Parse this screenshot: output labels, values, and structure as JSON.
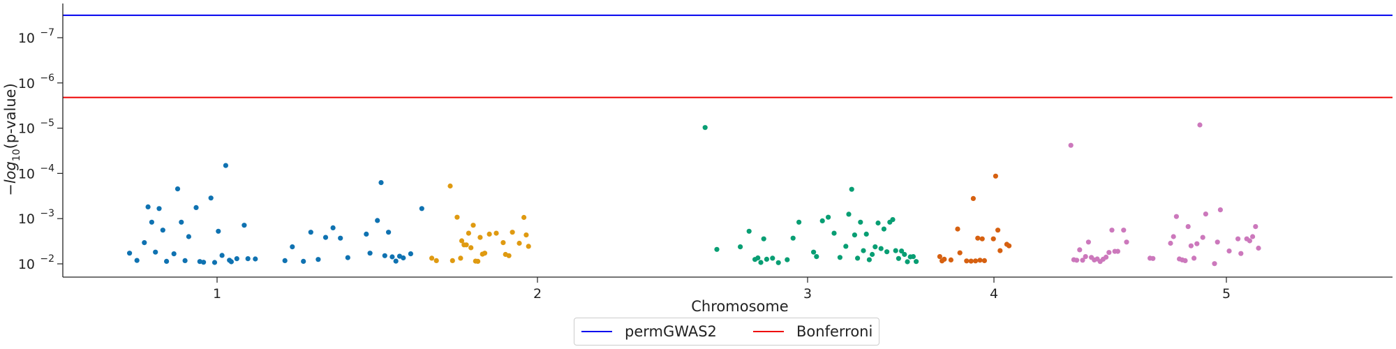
{
  "chart_data": {
    "type": "scatter",
    "title": "",
    "xlabel": "Chromosome",
    "ylabel": "−log10(p-value)",
    "y_scale": "log-reversed",
    "ylim": [
      0.02,
      3e-08
    ],
    "chromosome_ticks": [
      "1",
      "2",
      "3",
      "4",
      "5"
    ],
    "y_ticks": [
      {
        "value": 1e-07,
        "label": "10",
        "exp": "−7"
      },
      {
        "value": 1e-06,
        "label": "10",
        "exp": "−6"
      },
      {
        "value": 1e-05,
        "label": "10",
        "exp": "−5"
      },
      {
        "value": 0.0001,
        "label": "10",
        "exp": "−4"
      },
      {
        "value": 0.001,
        "label": "10",
        "exp": "−3"
      },
      {
        "value": 0.01,
        "label": "10",
        "exp": "−2"
      }
    ],
    "thresholds": [
      {
        "name": "permGWAS2",
        "value": 3.2e-08,
        "color": "#0000ee"
      },
      {
        "name": "Bonferroni",
        "value": 2.1e-06,
        "color": "#ee0000"
      }
    ],
    "legend_position": "below",
    "chromosome_colors": [
      "#0f72b1",
      "#df9a11",
      "#089e73",
      "#d66010",
      "#cc78bc"
    ],
    "series": [
      {
        "chromosome": 1,
        "color": "#0f72b1",
        "points": [
          [
            0.02,
            0.0058
          ],
          [
            0.04,
            0.0084
          ],
          [
            0.06,
            0.0034
          ],
          [
            0.07,
            0.00055
          ],
          [
            0.08,
            0.0012
          ],
          [
            0.09,
            0.0055
          ],
          [
            0.1,
            0.0006
          ],
          [
            0.11,
            0.0018
          ],
          [
            0.12,
            0.0088
          ],
          [
            0.14,
            0.006
          ],
          [
            0.15,
            0.00022
          ],
          [
            0.16,
            0.0012
          ],
          [
            0.17,
            0.0085
          ],
          [
            0.18,
            0.0025
          ],
          [
            0.2,
            0.00057
          ],
          [
            0.21,
            0.0089
          ],
          [
            0.22,
            0.0092
          ],
          [
            0.24,
            0.00035
          ],
          [
            0.25,
            0.0093
          ],
          [
            0.26,
            0.0019
          ],
          [
            0.27,
            0.0065
          ],
          [
            0.28,
            6.7e-05
          ],
          [
            0.29,
            0.0083
          ],
          [
            0.295,
            0.009
          ],
          [
            0.31,
            0.0077
          ],
          [
            0.33,
            0.0014
          ],
          [
            0.34,
            0.0077
          ],
          [
            0.36,
            0.0078
          ],
          [
            0.44,
            0.0085
          ],
          [
            0.46,
            0.0042
          ],
          [
            0.49,
            0.0088
          ],
          [
            0.51,
            0.002
          ],
          [
            0.53,
            0.008
          ],
          [
            0.55,
            0.0026
          ],
          [
            0.57,
            0.0016
          ],
          [
            0.59,
            0.0027
          ],
          [
            0.61,
            0.0073
          ],
          [
            0.66,
            0.0022
          ],
          [
            0.67,
            0.0058
          ],
          [
            0.69,
            0.0011
          ],
          [
            0.7,
            0.00016
          ],
          [
            0.71,
            0.0066
          ],
          [
            0.72,
            0.002
          ],
          [
            0.73,
            0.007
          ],
          [
            0.74,
            0.0087
          ],
          [
            0.75,
            0.0068
          ],
          [
            0.76,
            0.0074
          ],
          [
            0.78,
            0.006
          ],
          [
            0.81,
            0.0006
          ]
        ]
      },
      {
        "chromosome": 2,
        "color": "#df9a11",
        "points": [
          [
            0.02,
            0.0075
          ],
          [
            0.04,
            0.0085
          ],
          [
            0.1,
            0.00019
          ],
          [
            0.11,
            0.0085
          ],
          [
            0.13,
            0.00093
          ],
          [
            0.145,
            0.0075
          ],
          [
            0.15,
            0.0031
          ],
          [
            0.16,
            0.0038
          ],
          [
            0.17,
            0.0038
          ],
          [
            0.18,
            0.0021
          ],
          [
            0.19,
            0.0044
          ],
          [
            0.2,
            0.0014
          ],
          [
            0.21,
            0.0087
          ],
          [
            0.22,
            0.0088
          ],
          [
            0.23,
            0.0026
          ],
          [
            0.24,
            0.0061
          ],
          [
            0.25,
            0.0058
          ],
          [
            0.27,
            0.0022
          ],
          [
            0.3,
            0.0021
          ],
          [
            0.33,
            0.0034
          ],
          [
            0.34,
            0.0062
          ],
          [
            0.355,
            0.0066
          ],
          [
            0.37,
            0.002
          ],
          [
            0.4,
            0.0035
          ],
          [
            0.42,
            0.00094
          ],
          [
            0.43,
            0.0023
          ],
          [
            0.44,
            0.0041
          ]
        ]
      },
      {
        "chromosome": 3,
        "color": "#089e73",
        "points": [
          [
            0.01,
            9.7e-06
          ],
          [
            0.05,
            0.0048
          ],
          [
            0.13,
            0.0042
          ],
          [
            0.16,
            0.0019
          ],
          [
            0.18,
            0.008
          ],
          [
            0.19,
            0.0074
          ],
          [
            0.2,
            0.0093
          ],
          [
            0.21,
            0.0028
          ],
          [
            0.22,
            0.0079
          ],
          [
            0.24,
            0.0075
          ],
          [
            0.26,
            0.0094
          ],
          [
            0.29,
            0.0081
          ],
          [
            0.31,
            0.0027
          ],
          [
            0.33,
            0.0012
          ],
          [
            0.38,
            0.0055
          ],
          [
            0.39,
            0.0069
          ],
          [
            0.41,
            0.00112
          ],
          [
            0.43,
            0.00093
          ],
          [
            0.45,
            0.0021
          ],
          [
            0.47,
            0.0072
          ],
          [
            0.49,
            0.0041
          ],
          [
            0.5,
            0.0008
          ],
          [
            0.51,
            0.000225
          ],
          [
            0.52,
            0.0023
          ],
          [
            0.53,
            0.0075
          ],
          [
            0.54,
            0.0012
          ],
          [
            0.55,
            0.0051
          ],
          [
            0.56,
            0.0022
          ],
          [
            0.57,
            0.0081
          ],
          [
            0.58,
            0.0062
          ],
          [
            0.59,
            0.0042
          ],
          [
            0.6,
            0.00125
          ],
          [
            0.61,
            0.0046
          ],
          [
            0.62,
            0.0017
          ],
          [
            0.63,
            0.0054
          ],
          [
            0.64,
            0.0012
          ],
          [
            0.65,
            0.00105
          ],
          [
            0.66,
            0.0051
          ],
          [
            0.67,
            0.0076
          ],
          [
            0.68,
            0.0052
          ],
          [
            0.69,
            0.0062
          ],
          [
            0.7,
            0.009
          ],
          [
            0.71,
            0.007
          ],
          [
            0.72,
            0.0069
          ],
          [
            0.73,
            0.0089
          ]
        ]
      },
      {
        "chromosome": 4,
        "color": "#d66010",
        "points": [
          [
            0.02,
            0.0069
          ],
          [
            0.03,
            0.0086
          ],
          [
            0.04,
            0.0079
          ],
          [
            0.07,
            0.0082
          ],
          [
            0.1,
            0.0017
          ],
          [
            0.11,
            0.0057
          ],
          [
            0.14,
            0.0086
          ],
          [
            0.16,
            0.0087
          ],
          [
            0.17,
            0.00036
          ],
          [
            0.18,
            0.0086
          ],
          [
            0.19,
            0.0027
          ],
          [
            0.2,
            0.0083
          ],
          [
            0.21,
            0.0028
          ],
          [
            0.22,
            0.0085
          ],
          [
            0.26,
            0.0028
          ],
          [
            0.27,
            0.000115
          ],
          [
            0.28,
            0.0018
          ],
          [
            0.29,
            0.0051
          ],
          [
            0.32,
            0.0037
          ],
          [
            0.33,
            0.004
          ]
        ]
      },
      {
        "chromosome": 5,
        "color": "#cc78bc",
        "points": [
          [
            0.01,
            2.4e-05
          ],
          [
            0.02,
            0.0081
          ],
          [
            0.03,
            0.0083
          ],
          [
            0.04,
            0.0049
          ],
          [
            0.05,
            0.0083
          ],
          [
            0.06,
            0.0069
          ],
          [
            0.07,
            0.0033
          ],
          [
            0.08,
            0.0072
          ],
          [
            0.09,
            0.0082
          ],
          [
            0.1,
            0.0078
          ],
          [
            0.11,
            0.0089
          ],
          [
            0.12,
            0.0079
          ],
          [
            0.13,
            0.0071
          ],
          [
            0.14,
            0.0056
          ],
          [
            0.15,
            0.0018
          ],
          [
            0.16,
            0.0053
          ],
          [
            0.17,
            0.0053
          ],
          [
            0.19,
            0.0018
          ],
          [
            0.2,
            0.0033
          ],
          [
            0.28,
            0.0075
          ],
          [
            0.29,
            0.0076
          ],
          [
            0.35,
            0.0035
          ],
          [
            0.36,
            0.0025
          ],
          [
            0.37,
            0.0009
          ],
          [
            0.38,
            0.0078
          ],
          [
            0.39,
            0.0082
          ],
          [
            0.4,
            0.0085
          ],
          [
            0.41,
            0.0015
          ],
          [
            0.42,
            0.004
          ],
          [
            0.43,
            0.0075
          ],
          [
            0.44,
            0.0036
          ],
          [
            0.45,
            8.5e-06
          ],
          [
            0.46,
            0.0026
          ],
          [
            0.47,
            0.00079
          ],
          [
            0.5,
            0.0099
          ],
          [
            0.51,
            0.0033
          ],
          [
            0.52,
            0.00064
          ],
          [
            0.55,
            0.0052
          ],
          [
            0.58,
            0.0028
          ],
          [
            0.59,
            0.0059
          ],
          [
            0.61,
            0.0028
          ],
          [
            0.62,
            0.0031
          ],
          [
            0.63,
            0.0025
          ],
          [
            0.64,
            0.0015
          ],
          [
            0.65,
            0.0045
          ]
        ]
      }
    ],
    "legend": [
      "permGWAS2",
      "Bonferroni"
    ]
  }
}
